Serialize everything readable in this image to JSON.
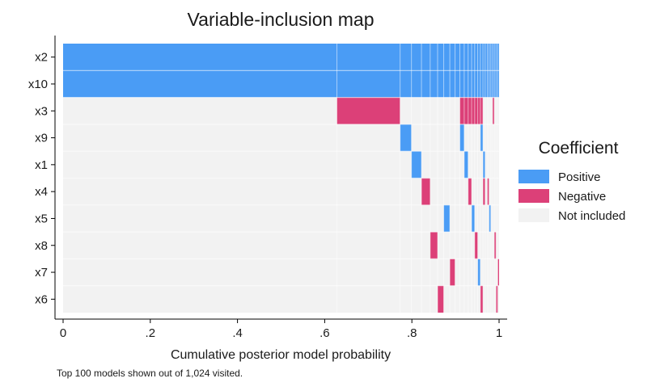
{
  "chart_data": {
    "type": "heatmap",
    "title": "Variable-inclusion map",
    "xlabel": "Cumulative posterior model probability",
    "ylabel": "",
    "xlim": [
      0,
      1
    ],
    "x_ticks": [
      {
        "value": 0,
        "label": "0"
      },
      {
        "value": 0.2,
        "label": ".2"
      },
      {
        "value": 0.4,
        "label": ".4"
      },
      {
        "value": 0.6,
        "label": ".6"
      },
      {
        "value": 0.8,
        "label": ".8"
      },
      {
        "value": 1.0,
        "label": "1"
      }
    ],
    "variables": [
      "x2",
      "x10",
      "x3",
      "x9",
      "x1",
      "x4",
      "x5",
      "x8",
      "x7",
      "x6"
    ],
    "legend": {
      "title": "Coefficient",
      "placement": "right",
      "entries": [
        {
          "key": "positive",
          "label": "Positive",
          "color": "#4a9cf5"
        },
        {
          "key": "negative",
          "label": "Negative",
          "color": "#dc4078"
        },
        {
          "key": "none",
          "label": "Not included",
          "color": "#f2f2f2"
        }
      ]
    },
    "model_boundaries": [
      0,
      0.628,
      0.773,
      0.799,
      0.822,
      0.842,
      0.859,
      0.873,
      0.887,
      0.899,
      0.91,
      0.92,
      0.929,
      0.937,
      0.944,
      0.951,
      0.957,
      0.963,
      0.968,
      0.973,
      0.977,
      0.981,
      0.985,
      0.989,
      0.993,
      0.997,
      1.0
    ],
    "segments": [
      {
        "var": "x2",
        "sign": "positive",
        "from": 0,
        "to": 1.0
      },
      {
        "var": "x10",
        "sign": "positive",
        "from": 0,
        "to": 1.0
      },
      {
        "var": "x3",
        "sign": "negative",
        "from": 0.628,
        "to": 0.773
      },
      {
        "var": "x3",
        "sign": "negative",
        "from": 0.91,
        "to": 0.963
      },
      {
        "var": "x3",
        "sign": "negative",
        "from": 0.985,
        "to": 0.989
      },
      {
        "var": "x9",
        "sign": "positive",
        "from": 0.773,
        "to": 0.799
      },
      {
        "var": "x9",
        "sign": "positive",
        "from": 0.91,
        "to": 0.92
      },
      {
        "var": "x9",
        "sign": "positive",
        "from": 0.957,
        "to": 0.963
      },
      {
        "var": "x1",
        "sign": "positive",
        "from": 0.799,
        "to": 0.822
      },
      {
        "var": "x1",
        "sign": "positive",
        "from": 0.92,
        "to": 0.929
      },
      {
        "var": "x1",
        "sign": "positive",
        "from": 0.963,
        "to": 0.968
      },
      {
        "var": "x4",
        "sign": "negative",
        "from": 0.822,
        "to": 0.842
      },
      {
        "var": "x4",
        "sign": "negative",
        "from": 0.929,
        "to": 0.937
      },
      {
        "var": "x4",
        "sign": "negative",
        "from": 0.963,
        "to": 0.968
      },
      {
        "var": "x4",
        "sign": "negative",
        "from": 0.973,
        "to": 0.977
      },
      {
        "var": "x5",
        "sign": "positive",
        "from": 0.873,
        "to": 0.887
      },
      {
        "var": "x5",
        "sign": "positive",
        "from": 0.937,
        "to": 0.944
      },
      {
        "var": "x5",
        "sign": "positive",
        "from": 0.977,
        "to": 0.981
      },
      {
        "var": "x8",
        "sign": "negative",
        "from": 0.842,
        "to": 0.859
      },
      {
        "var": "x8",
        "sign": "negative",
        "from": 0.944,
        "to": 0.951
      },
      {
        "var": "x8",
        "sign": "negative",
        "from": 0.989,
        "to": 0.993
      },
      {
        "var": "x7",
        "sign": "negative",
        "from": 0.887,
        "to": 0.899
      },
      {
        "var": "x7",
        "sign": "positive",
        "from": 0.951,
        "to": 0.957
      },
      {
        "var": "x7",
        "sign": "negative",
        "from": 0.997,
        "to": 1.0
      },
      {
        "var": "x6",
        "sign": "negative",
        "from": 0.859,
        "to": 0.873
      },
      {
        "var": "x6",
        "sign": "negative",
        "from": 0.957,
        "to": 0.963
      },
      {
        "var": "x6",
        "sign": "negative",
        "from": 0.993,
        "to": 0.997
      }
    ],
    "note": "Top 100 models shown out of 1,024 visited."
  }
}
